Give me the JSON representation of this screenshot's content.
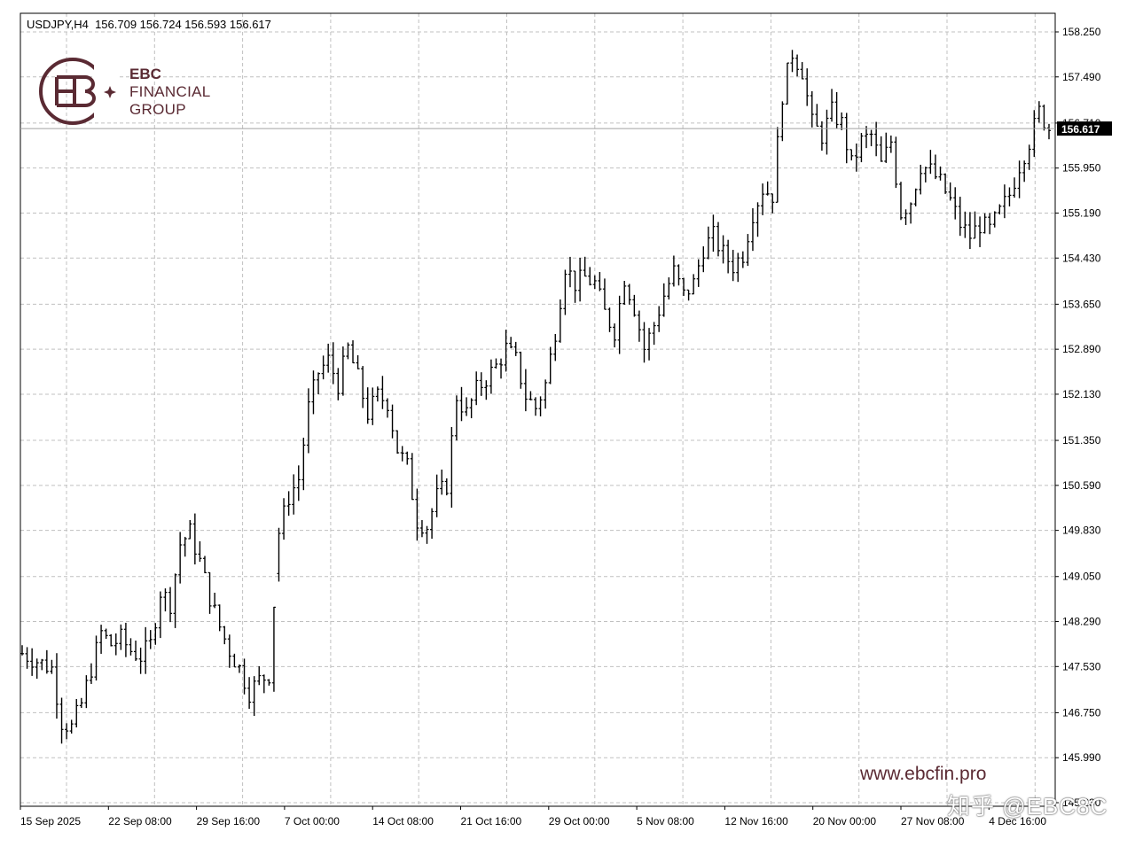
{
  "header": {
    "symbol": "USDJPY,H4",
    "ohlc": "156.709 156.724 156.593 156.617"
  },
  "logo": {
    "line1": "EBC",
    "line2": "FINANCIAL",
    "line3": "GROUP",
    "color": "#5a2a33"
  },
  "website": "www.ebcfin.pro",
  "watermark": "知乎 @EBC8C",
  "chart_data": {
    "type": "bar",
    "symbol": "USDJPY",
    "timeframe": "H4",
    "current_price": "156.617",
    "y_ticks": [
      "158.250",
      "157.490",
      "156.710",
      "155.950",
      "155.190",
      "154.430",
      "153.650",
      "152.890",
      "152.130",
      "151.350",
      "150.590",
      "149.830",
      "149.050",
      "148.290",
      "147.530",
      "146.750",
      "145.990",
      "145.230"
    ],
    "ylim": [
      145.23,
      158.25
    ],
    "x_ticks": [
      "15 Sep 2025",
      "22 Sep 08:00",
      "29 Sep 16:00",
      "7 Oct 00:00",
      "14 Oct 08:00",
      "21 Oct 16:00",
      "29 Oct 00:00",
      "5 Nov 08:00",
      "12 Nov 16:00",
      "20 Nov 00:00",
      "27 Nov 08:00",
      "4 Dec 16:00"
    ],
    "grid": true,
    "close_path": [
      [
        0,
        147.75
      ],
      [
        6,
        147.5
      ],
      [
        8,
        146.6
      ],
      [
        10,
        146.5
      ],
      [
        12,
        146.9
      ],
      [
        14,
        147.5
      ],
      [
        16,
        148.1
      ],
      [
        18,
        147.9
      ],
      [
        20,
        148.0
      ],
      [
        22,
        147.8
      ],
      [
        24,
        147.7
      ],
      [
        26,
        147.9
      ],
      [
        28,
        148.8
      ],
      [
        30,
        148.6
      ],
      [
        32,
        149.6
      ],
      [
        34,
        149.8
      ],
      [
        36,
        149.3
      ],
      [
        38,
        148.7
      ],
      [
        40,
        148.2
      ],
      [
        42,
        147.8
      ],
      [
        44,
        147.5
      ],
      [
        46,
        147.1
      ],
      [
        48,
        147.3
      ],
      [
        50,
        147.4
      ],
      [
        52,
        149.8
      ],
      [
        54,
        150.4
      ],
      [
        56,
        150.7
      ],
      [
        58,
        151.9
      ],
      [
        60,
        152.5
      ],
      [
        62,
        152.7
      ],
      [
        64,
        152.3
      ],
      [
        66,
        152.9
      ],
      [
        68,
        152.4
      ],
      [
        70,
        151.8
      ],
      [
        72,
        152.1
      ],
      [
        74,
        152.0
      ],
      [
        76,
        151.2
      ],
      [
        78,
        150.9
      ],
      [
        80,
        150.0
      ],
      [
        82,
        149.9
      ],
      [
        84,
        150.4
      ],
      [
        86,
        150.6
      ],
      [
        88,
        152.1
      ],
      [
        90,
        151.8
      ],
      [
        92,
        152.2
      ],
      [
        94,
        152.4
      ],
      [
        96,
        152.6
      ],
      [
        98,
        152.9
      ],
      [
        100,
        152.7
      ],
      [
        102,
        152.1
      ],
      [
        104,
        151.9
      ],
      [
        106,
        152.3
      ],
      [
        108,
        153.2
      ],
      [
        110,
        154.3
      ],
      [
        112,
        154.0
      ],
      [
        114,
        154.1
      ],
      [
        116,
        154.0
      ],
      [
        118,
        153.5
      ],
      [
        120,
        153.2
      ],
      [
        122,
        154.1
      ],
      [
        124,
        153.6
      ],
      [
        126,
        152.9
      ],
      [
        128,
        153.3
      ],
      [
        130,
        153.8
      ],
      [
        132,
        154.2
      ],
      [
        134,
        153.8
      ],
      [
        136,
        154.0
      ],
      [
        138,
        154.6
      ],
      [
        140,
        154.8
      ],
      [
        142,
        154.5
      ],
      [
        144,
        154.3
      ],
      [
        146,
        154.5
      ],
      [
        148,
        155.2
      ],
      [
        150,
        155.6
      ],
      [
        152,
        155.5
      ],
      [
        154,
        157.2
      ],
      [
        156,
        157.9
      ],
      [
        158,
        157.6
      ],
      [
        160,
        156.7
      ],
      [
        162,
        156.5
      ],
      [
        164,
        156.9
      ],
      [
        166,
        156.7
      ],
      [
        168,
        156.0
      ],
      [
        170,
        156.4
      ],
      [
        172,
        156.5
      ],
      [
        174,
        156.0
      ],
      [
        176,
        156.4
      ],
      [
        178,
        155.2
      ],
      [
        180,
        155.4
      ],
      [
        182,
        156.0
      ],
      [
        184,
        155.9
      ],
      [
        186,
        155.7
      ],
      [
        188,
        155.4
      ],
      [
        190,
        155.0
      ],
      [
        192,
        154.8
      ],
      [
        194,
        155.0
      ],
      [
        196,
        154.9
      ],
      [
        198,
        155.2
      ],
      [
        200,
        155.5
      ],
      [
        202,
        156.0
      ],
      [
        204,
        156.4
      ],
      [
        206,
        156.9
      ],
      [
        208,
        156.62
      ]
    ]
  }
}
